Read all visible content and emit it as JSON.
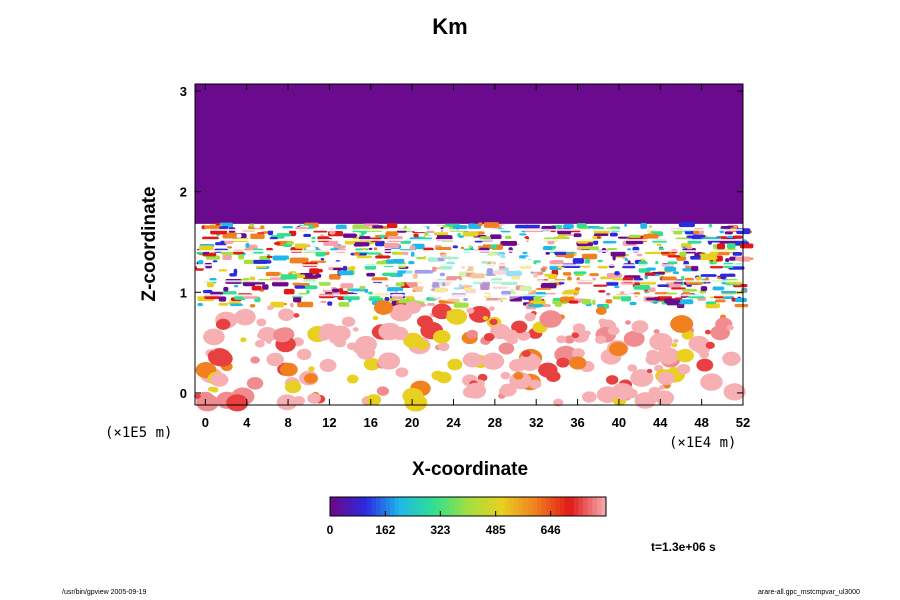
{
  "chart_data": {
    "type": "heatmap",
    "title": "Km",
    "xlabel": "X-coordinate",
    "ylabel": "Z-coordinate",
    "x_unit": "(×1E4 m)",
    "y_unit": "(×1E5 m)",
    "xlim": [
      -1,
      52
    ],
    "ylim": [
      -0.12,
      3.07
    ],
    "x_ticks": [
      0,
      4,
      8,
      12,
      16,
      20,
      24,
      28,
      32,
      36,
      40,
      44,
      48,
      52
    ],
    "y_ticks": [
      0,
      1,
      2,
      3
    ],
    "colorbar": {
      "min": 0,
      "max": 808,
      "ticks": [
        0,
        162,
        323,
        485,
        646
      ],
      "colors": [
        "#6a0a8c",
        "#2a2ae0",
        "#20b8e8",
        "#30e090",
        "#a0e040",
        "#e8d020",
        "#f08020",
        "#e01818",
        "#f4a4a8"
      ]
    },
    "time_label": "t=1.3e+06 s",
    "description_layers": [
      {
        "z_range": [
          1.7,
          3.07
        ],
        "value": 0
      },
      {
        "z_range": [
          0.9,
          1.7
        ],
        "value": "mixed 0-808, layered bands"
      },
      {
        "z_range": [
          -0.12,
          0.9
        ],
        "value": "mostly white with scattered patches up to 808"
      }
    ]
  },
  "footer": {
    "left": "/usr/bin/gpview 2005-09-19",
    "right": "arare-all.gpc_mstcmpvar_ul3000"
  }
}
